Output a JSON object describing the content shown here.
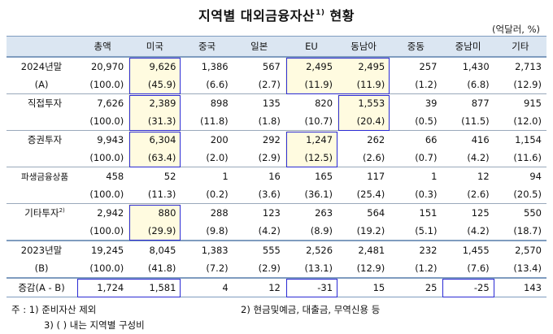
{
  "title": "지역별 대외금융자산",
  "title_sup": "1)",
  "title_suffix": " 현황",
  "unit": "(억달러, %)",
  "columns": [
    "",
    "총액",
    "미국",
    "중국",
    "일본",
    "EU",
    "동남아",
    "중동",
    "중남미",
    "기타"
  ],
  "rows": [
    {
      "label": "2024년말",
      "cells": [
        "20,970",
        "9,626",
        "1,386",
        "567",
        "2,495",
        "2,495",
        "257",
        "1,430",
        "2,713"
      ]
    },
    {
      "label": "(A)",
      "cells": [
        "(100.0)",
        "(45.9)",
        "(6.6)",
        "(2.7)",
        "(11.9)",
        "(11.9)",
        "(1.2)",
        "(6.8)",
        "(12.9)"
      ]
    },
    {
      "label": "직접투자",
      "cells": [
        "7,626",
        "2,389",
        "898",
        "135",
        "820",
        "1,553",
        "39",
        "877",
        "915"
      ]
    },
    {
      "label": "",
      "cells": [
        "(100.0)",
        "(31.3)",
        "(11.8)",
        "(1.8)",
        "(10.7)",
        "(20.4)",
        "(0.5)",
        "(11.5)",
        "(12.0)"
      ]
    },
    {
      "label": "증권투자",
      "cells": [
        "9,943",
        "6,304",
        "200",
        "292",
        "1,247",
        "262",
        "66",
        "416",
        "1,154"
      ]
    },
    {
      "label": "",
      "cells": [
        "(100.0)",
        "(63.4)",
        "(2.0)",
        "(2.9)",
        "(12.5)",
        "(2.6)",
        "(0.7)",
        "(4.2)",
        "(11.6)"
      ]
    },
    {
      "label": "파생금융상품",
      "cells": [
        "458",
        "52",
        "1",
        "16",
        "165",
        "117",
        "1",
        "12",
        "94"
      ]
    },
    {
      "label": "",
      "cells": [
        "(100.0)",
        "(11.3)",
        "(0.2)",
        "(3.6)",
        "(36.1)",
        "(25.4)",
        "(0.3)",
        "(2.6)",
        "(20.5)"
      ]
    },
    {
      "label": "기타투자",
      "label_sup": "2)",
      "cells": [
        "2,942",
        "880",
        "288",
        "123",
        "263",
        "564",
        "151",
        "125",
        "550"
      ]
    },
    {
      "label": "",
      "cells": [
        "(100.0)",
        "(29.9)",
        "(9.8)",
        "(4.2)",
        "(8.9)",
        "(19.2)",
        "(5.1)",
        "(4.2)",
        "(18.7)"
      ]
    },
    {
      "label": "2023년말",
      "cells": [
        "19,245",
        "8,045",
        "1,383",
        "555",
        "2,526",
        "2,481",
        "232",
        "1,455",
        "2,570"
      ]
    },
    {
      "label": "(B)",
      "cells": [
        "(100.0)",
        "(41.8)",
        "(7.2)",
        "(2.9)",
        "(13.1)",
        "(12.9)",
        "(1.2)",
        "(7.6)",
        "(13.4)"
      ]
    },
    {
      "label": "증감(A - B)",
      "cells": [
        "1,724",
        "1,581",
        "4",
        "12",
        "-31",
        "15",
        "25",
        "-25",
        "143"
      ]
    }
  ],
  "notes": {
    "n1": "주 : 1) 준비자산 제외",
    "n2": "2) 현금및예금, 대출금, 무역신용 등",
    "n3": "3) (  ) 내는 지역별 구성비"
  },
  "highlight_color": "#2a2ad4",
  "highlight_fill": "#fffbe0"
}
